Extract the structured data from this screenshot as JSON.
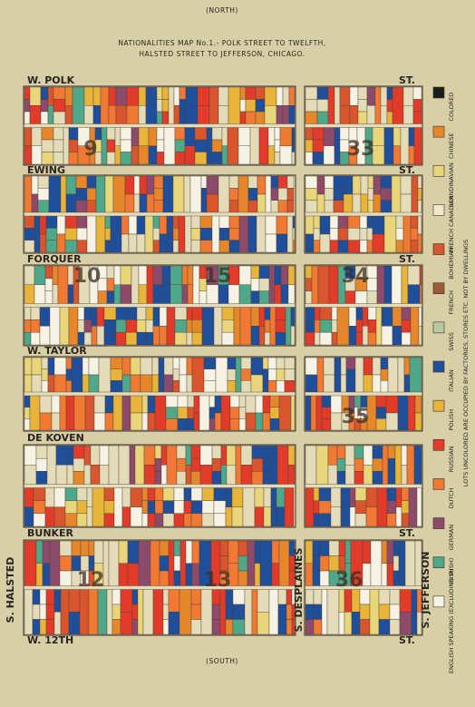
{
  "header": {
    "direction": "(NORTH)",
    "title_lines": [
      "NATIONALITIES MAP No.1.- POLK STREET TO TWELFTH,",
      "HALSTED STREET TO JEFFERSON, CHICAGO."
    ]
  },
  "footer": {
    "direction": "(SOUTH)"
  },
  "streets": {
    "horizontal": [
      {
        "name": "W. POLK",
        "suffix": "ST."
      },
      {
        "name": "EWING",
        "suffix": "ST."
      },
      {
        "name": "FORQUER",
        "suffix": "ST."
      },
      {
        "name": "W. TAYLOR"
      },
      {
        "name": "DE KOVEN"
      },
      {
        "name": "BUNKER",
        "suffix": "ST."
      },
      {
        "name": "W. 12TH",
        "suffix": "ST."
      }
    ],
    "vertical": [
      "S. HALSTED",
      "S. DESPLAINES",
      "S. JEFFERSON"
    ]
  },
  "blocks": [
    "9",
    "33",
    "10",
    "15",
    "34",
    "35",
    "12",
    "13",
    "36"
  ],
  "legend": [
    {
      "label": "COLORED",
      "color": "#1c1c1c"
    },
    {
      "label": "CHINESE",
      "color": "#e6872c"
    },
    {
      "label": "SCANDINAVIAN",
      "color": "#e9d57a"
    },
    {
      "label": "FRENCH CANADIAN",
      "color": "#f0e8c8"
    },
    {
      "label": "BOHEMIAN",
      "color": "#d9552e"
    },
    {
      "label": "FRENCH",
      "color": "#9a5a32"
    },
    {
      "label": "SWISS",
      "color": "#b7c9a0"
    },
    {
      "label": "ITALIAN",
      "color": "#1f4f9a"
    },
    {
      "label": "POLISH",
      "color": "#e9b43a"
    },
    {
      "label": "RUSSIAN",
      "color": "#e23b2a"
    },
    {
      "label": "DUTCH",
      "color": "#f07a34"
    },
    {
      "label": "GERMAN",
      "color": "#8e4a6a"
    },
    {
      "label": "IRISH",
      "color": "#4fa88a"
    },
    {
      "label": "ENGLISH SPEAKING (EXCLUDING IRISH)",
      "color": "#f6f2e4"
    }
  ],
  "note": "LOTS UNCOLORED ARE OCCUPIED BY FACTORIES, STORES ETC. NOT BY DWELLINGS"
}
